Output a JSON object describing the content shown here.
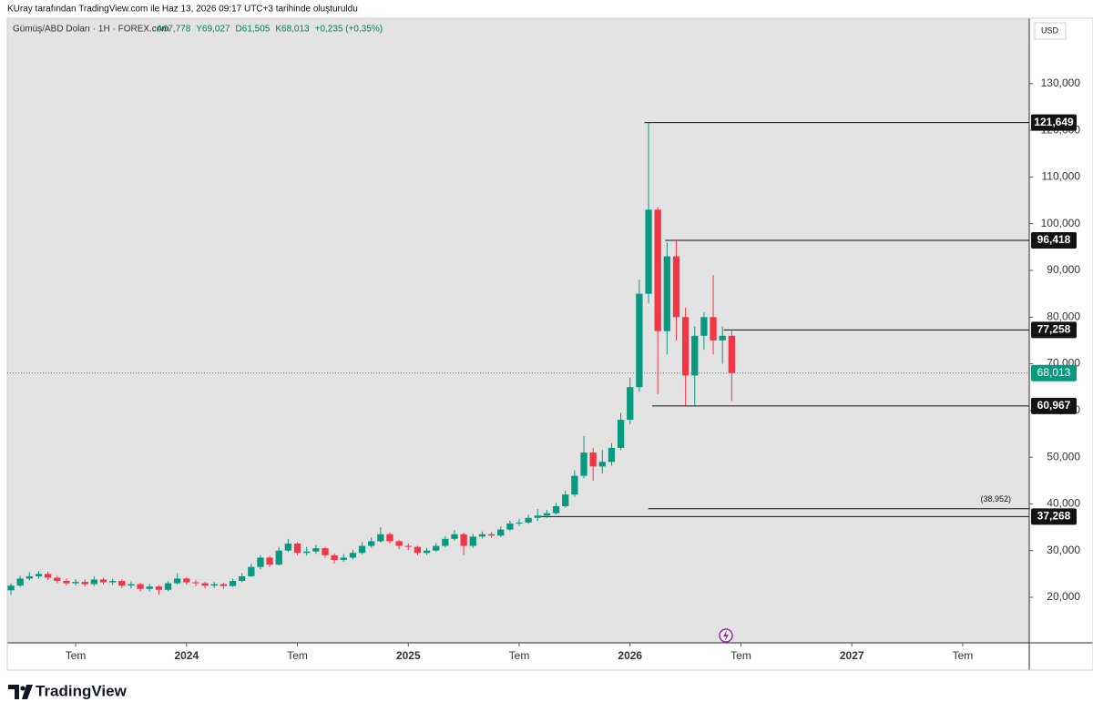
{
  "header": {
    "attribution": "KUray tarafından TradingView.com ile Haz 13, 2026 09:17 UTC+3 tarihinde oluşturuldu"
  },
  "footer": {
    "brand": "TradingView"
  },
  "chart_data": {
    "type": "candlestick",
    "title": "Gümüş/ABD Doları · 1H · FOREX.com",
    "legend_values": [
      "A67,778",
      "Y69,027",
      "D61,505",
      "K68,013",
      "+0,235 (+0,35%)"
    ],
    "currency": "USD",
    "up_color": "#089981",
    "down_color": "#f23645",
    "x": [
      2.5,
      3,
      3.5,
      4,
      4.5,
      5,
      5.5,
      6,
      6.5,
      7,
      7.5,
      8,
      8.5,
      9,
      9.5,
      10,
      10.5,
      11,
      11.5,
      12,
      12.5,
      13,
      13.5,
      14,
      14.5,
      15,
      15.5,
      16,
      16.5,
      17,
      17.5,
      18,
      18.5,
      19,
      19.5,
      20,
      20.5,
      21,
      21.5,
      22,
      22.5,
      23,
      23.5,
      24,
      24.5,
      25,
      25.5,
      26,
      26.5,
      27,
      27.5,
      28,
      28.5,
      29,
      29.5,
      30,
      30.5,
      31,
      31.5,
      32,
      32.5,
      33,
      33.5,
      34,
      34.5,
      35,
      35.5,
      36,
      36.5,
      37,
      37.5,
      38,
      38.5,
      39,
      39.5,
      40,
      40.5,
      41,
      41.5
    ],
    "open": [
      21500,
      22500,
      24000,
      24500,
      25000,
      24200,
      23500,
      23000,
      23300,
      22800,
      23800,
      23200,
      23500,
      22500,
      22800,
      21800,
      22300,
      21600,
      23000,
      24000,
      23200,
      23000,
      22500,
      22800,
      22400,
      23500,
      24500,
      26500,
      28500,
      27000,
      30000,
      31500,
      29500,
      29800,
      30500,
      29000,
      28000,
      28500,
      29500,
      31000,
      32000,
      33500,
      32000,
      31000,
      30800,
      29500,
      30000,
      31000,
      32500,
      33500,
      31000,
      33000,
      33500,
      33200,
      34500,
      35800,
      36000,
      37000,
      37500,
      38000,
      39500,
      42000,
      46000,
      51000,
      48000,
      49000,
      52000,
      58000,
      65000,
      85000,
      103000,
      77000,
      93000,
      80000,
      67500,
      76000,
      80000,
      75000,
      76000
    ],
    "high": [
      23000,
      24600,
      25300,
      25600,
      25500,
      24600,
      24000,
      23900,
      23800,
      24500,
      24200,
      24000,
      23800,
      23400,
      23100,
      22900,
      22600,
      23500,
      25200,
      24300,
      23700,
      23300,
      23300,
      23100,
      24000,
      25200,
      27200,
      29000,
      28900,
      30800,
      32500,
      31800,
      30800,
      31200,
      30800,
      29400,
      29300,
      30200,
      31800,
      32800,
      35000,
      33900,
      32300,
      31500,
      31000,
      30600,
      31600,
      33100,
      34400,
      33800,
      33600,
      34100,
      34000,
      35100,
      36400,
      36800,
      37700,
      38900,
      38700,
      40200,
      42800,
      47200,
      54500,
      52000,
      51500,
      53000,
      59500,
      67000,
      88000,
      121649,
      103500,
      96000,
      96418,
      82000,
      78000,
      81000,
      89000,
      78000,
      77258
    ],
    "low": [
      20500,
      22200,
      23600,
      24000,
      23700,
      23000,
      22500,
      22500,
      22300,
      22400,
      22700,
      22600,
      22000,
      21900,
      21300,
      21200,
      20500,
      21300,
      22700,
      22700,
      22400,
      21900,
      22000,
      21800,
      22200,
      23200,
      24300,
      26000,
      26500,
      26800,
      29700,
      29000,
      28900,
      29300,
      28400,
      27200,
      27600,
      28100,
      29200,
      30600,
      31700,
      31500,
      30300,
      30100,
      29000,
      29100,
      29700,
      30700,
      32100,
      29000,
      30600,
      32600,
      32700,
      32900,
      34200,
      35300,
      35700,
      36300,
      37000,
      37700,
      39200,
      41500,
      45500,
      45000,
      46500,
      48200,
      51500,
      57000,
      64000,
      83000,
      63500,
      72000,
      75000,
      61000,
      60967,
      73000,
      72000,
      70000,
      62000
    ],
    "close": [
      22500,
      24000,
      24500,
      25000,
      24200,
      23500,
      23000,
      23300,
      22800,
      23800,
      23200,
      23500,
      22500,
      22800,
      21800,
      22300,
      21600,
      23000,
      24000,
      23200,
      23000,
      22500,
      22800,
      22400,
      23500,
      24500,
      26500,
      28500,
      27000,
      30000,
      31500,
      29500,
      29800,
      30500,
      29000,
      28000,
      28500,
      29500,
      31000,
      32000,
      33500,
      32000,
      31000,
      30800,
      29500,
      30000,
      31000,
      32500,
      33500,
      31000,
      33000,
      33500,
      33200,
      34500,
      35800,
      36000,
      37000,
      37500,
      38000,
      39500,
      42000,
      46000,
      51000,
      48000,
      49000,
      52000,
      58000,
      65000,
      85000,
      103000,
      77000,
      93000,
      80000,
      67500,
      76000,
      80000,
      75000,
      76000,
      68013
    ],
    "xlim": [
      2.3,
      57.6
    ],
    "xticks": [
      {
        "value": 6,
        "label": "Tem"
      },
      {
        "value": 12,
        "label": "2024"
      },
      {
        "value": 18,
        "label": "Tem"
      },
      {
        "value": 24,
        "label": "2025"
      },
      {
        "value": 30,
        "label": "Tem"
      },
      {
        "value": 36,
        "label": "2026"
      },
      {
        "value": 42,
        "label": "Tem"
      },
      {
        "value": 48,
        "label": "2027"
      },
      {
        "value": 54,
        "label": "Tem"
      }
    ],
    "ylim": [
      10250,
      144000
    ],
    "yticks": [
      {
        "value": 20000,
        "label": "20,000"
      },
      {
        "value": 30000,
        "label": "30,000"
      },
      {
        "value": 40000,
        "label": "40,000"
      },
      {
        "value": 50000,
        "label": "50,000"
      },
      {
        "value": 60000,
        "label": "60,000"
      },
      {
        "value": 70000,
        "label": "70,000"
      },
      {
        "value": 80000,
        "label": "80,000"
      },
      {
        "value": 90000,
        "label": "90,000"
      },
      {
        "value": 100000,
        "label": "100,000"
      },
      {
        "value": 110000,
        "label": "110,000"
      },
      {
        "value": 120000,
        "label": "120,000"
      },
      {
        "value": 130000,
        "label": "130,000"
      }
    ],
    "last_price": {
      "value": 68013,
      "label": "68,013"
    },
    "levels": [
      {
        "value": 121649,
        "label": "121,649",
        "from_x": 36.78,
        "badge": true
      },
      {
        "value": 96418,
        "label": "96,418",
        "from_x": 37.9,
        "badge": true
      },
      {
        "value": 77258,
        "label": "77,258",
        "from_x": 41.07,
        "badge": true
      },
      {
        "value": 60967,
        "label": "60,967",
        "from_x": 37.2,
        "badge": true
      },
      {
        "value": 38952,
        "label": "(38,952)",
        "from_x": 36.98,
        "badge": false
      },
      {
        "value": 37268,
        "label": "37,268",
        "from_x": 30.97,
        "badge": true
      }
    ]
  }
}
